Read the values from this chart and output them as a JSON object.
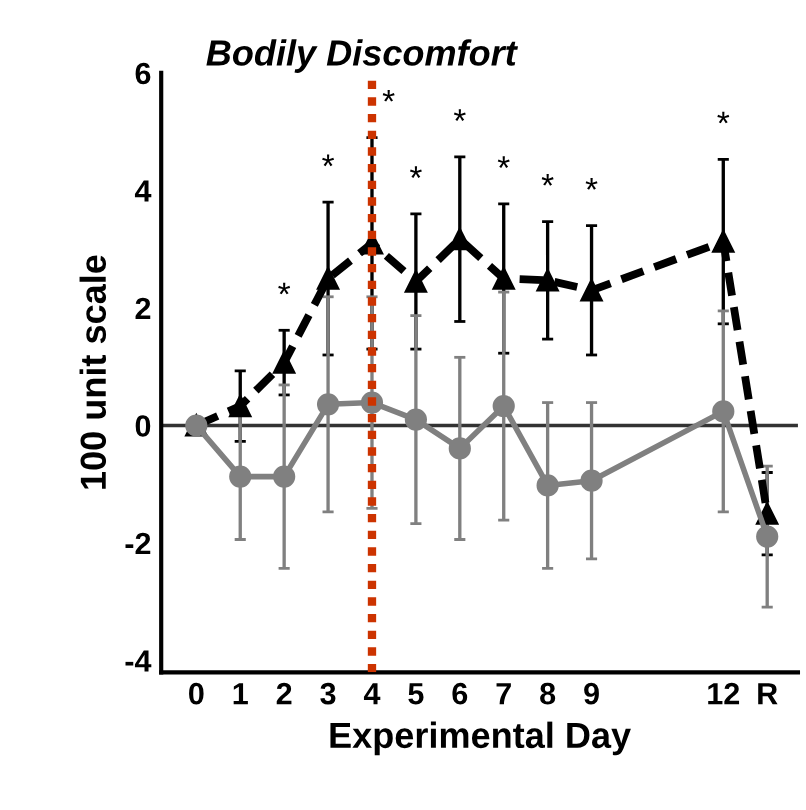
{
  "chart_data": {
    "type": "line",
    "title": "Bodily Discomfort",
    "xlabel": "Experimental Day",
    "ylabel": "100 unit scale",
    "x": [
      0,
      1,
      2,
      3,
      4,
      5,
      6,
      7,
      8,
      9,
      12,
      13
    ],
    "xlim": [
      -0.8,
      13.7
    ],
    "xticks": [
      0,
      1,
      2,
      3,
      4,
      5,
      6,
      7,
      8,
      9,
      12,
      {
        "value": 13,
        "label": "R"
      }
    ],
    "ylim": [
      -4.2,
      6
    ],
    "yticks": [
      -4,
      -2,
      0,
      2,
      4,
      6
    ],
    "grid": false,
    "legend": false,
    "series": [
      {
        "color": "#000000",
        "marker": "triangle",
        "line_style": "dashed",
        "values": [
          0,
          0.33,
          1.07,
          2.5,
          3.1,
          2.45,
          3.17,
          2.5,
          2.47,
          2.3,
          3.13,
          -1.5
        ],
        "errors": [
          null,
          0.6,
          0.55,
          1.3,
          1.8,
          1.15,
          1.4,
          1.27,
          1.0,
          1.1,
          1.4,
          0.7
        ]
      },
      {
        "color": "#808080",
        "marker": "circle",
        "line_style": "solid",
        "values": [
          0,
          -0.87,
          -0.87,
          0.36,
          0.39,
          0.1,
          -0.39,
          0.33,
          -1.02,
          -0.94,
          0.24,
          -1.89
        ],
        "errors": [
          null,
          1.07,
          1.56,
          1.83,
          1.8,
          1.77,
          1.55,
          1.94,
          1.41,
          1.33,
          1.71,
          1.2
        ]
      }
    ],
    "ref_lines": [
      {
        "axis": "y",
        "value": 0,
        "color": "#333333",
        "line_style": "solid"
      },
      {
        "axis": "x",
        "value": 4,
        "color": "#cc3300",
        "line_style": "dotted"
      }
    ],
    "annotations": [
      {
        "text": "*",
        "x": 2,
        "y": 1.62
      },
      {
        "text": "*",
        "x": 3,
        "y": 3.8
      },
      {
        "text": "*",
        "x": 4,
        "y": 4.9
      },
      {
        "text": "*",
        "x": 5,
        "y": 3.6
      },
      {
        "text": "*",
        "x": 6,
        "y": 4.57
      },
      {
        "text": "*",
        "x": 7,
        "y": 3.77
      },
      {
        "text": "*",
        "x": 8,
        "y": 3.47
      },
      {
        "text": "*",
        "x": 9,
        "y": 3.4
      },
      {
        "text": "*",
        "x": 12,
        "y": 4.53
      }
    ]
  }
}
